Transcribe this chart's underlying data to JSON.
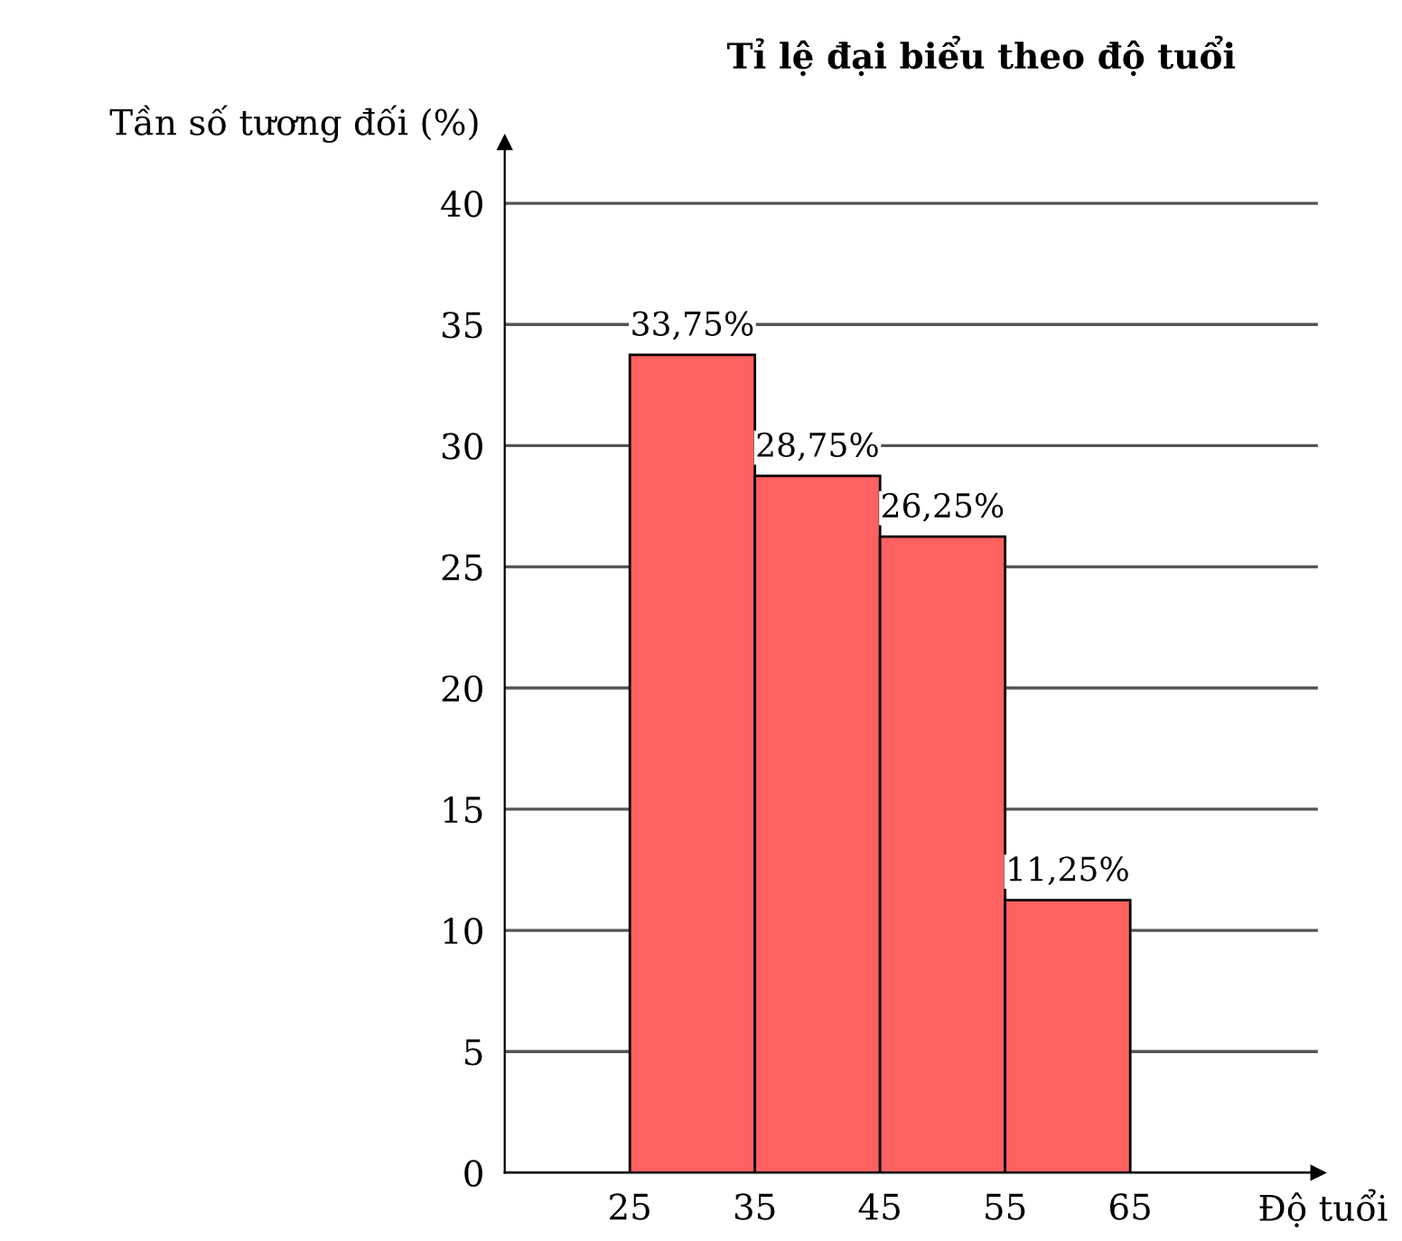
{
  "chart_data": {
    "type": "histogram",
    "title": "Tỉ lệ đại biểu theo độ tuổi",
    "xlabel": "Độ tuổi",
    "ylabel": "Tần số tương đối (%)",
    "bins": [
      25,
      35,
      45,
      55,
      65
    ],
    "values": [
      33.75,
      28.75,
      26.25,
      11.25
    ],
    "value_labels": [
      "33,75%",
      "28,75%",
      "26,25%",
      "11,25%"
    ],
    "color": "#ff6161",
    "xlim": [
      15,
      80
    ],
    "ylim": [
      0,
      42.5
    ],
    "xticks": [
      25,
      35,
      45,
      55,
      65
    ],
    "yticks": [
      0,
      5,
      10,
      15,
      20,
      25,
      30,
      35,
      40
    ],
    "grid": "y"
  }
}
